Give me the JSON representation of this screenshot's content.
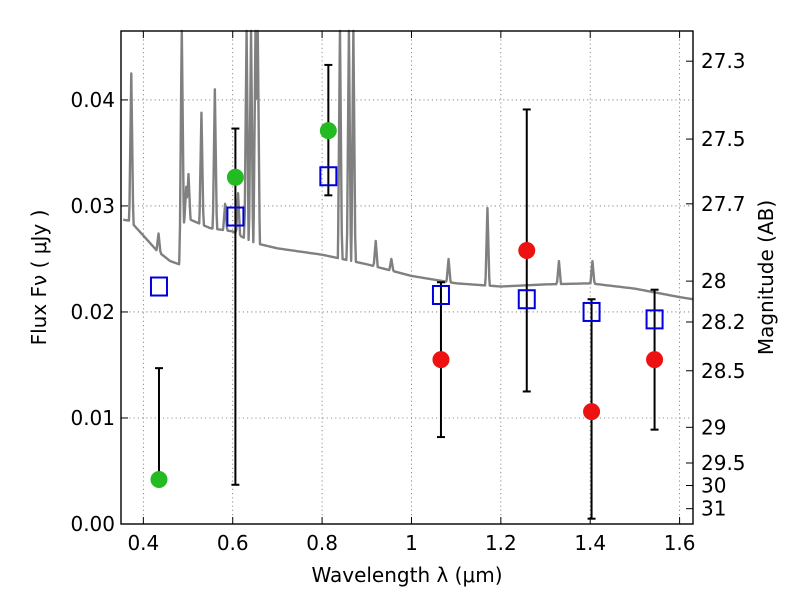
{
  "chart_data": {
    "type": "scatter",
    "title": "",
    "xlabel": "Wavelength  λ (μm)",
    "ylabel": "Flux  Fν  ( μJy )",
    "ylabel_right": "Magnitude (AB)",
    "xlim": [
      0.35,
      1.63
    ],
    "ylim": [
      0.0,
      0.0465
    ],
    "grid": true,
    "x_ticks": [
      0.4,
      0.6,
      0.8,
      1.0,
      1.2,
      1.4,
      1.6
    ],
    "x_tick_labels": [
      "0.4",
      "0.6",
      "0.8",
      "1",
      "1.2",
      "1.4",
      "1.6"
    ],
    "y_ticks": [
      0.0,
      0.01,
      0.02,
      0.03,
      0.04
    ],
    "y_tick_labels": [
      "0.00",
      "0.01",
      "0.02",
      "0.03",
      "0.04"
    ],
    "right_axis_tick_labels": [
      "27.3",
      "27.5",
      "27.7",
      "28",
      "28.2",
      "28.5",
      "29",
      "29.5",
      "30",
      "31"
    ],
    "series": [
      {
        "name": "",
        "kind": "observed-detections",
        "color": "#22bb22",
        "marker": "circle",
        "points": [
          {
            "x": 0.435,
            "y": 0.0042,
            "err_low": 0.0042,
            "err_high": 0.0147
          },
          {
            "x": 0.606,
            "y": 0.0327,
            "err_low": 0.0037,
            "err_high": 0.0373
          },
          {
            "x": 0.814,
            "y": 0.0371,
            "err_low": 0.031,
            "err_high": 0.0433
          }
        ]
      },
      {
        "name": "",
        "kind": "observed-low-snr",
        "color": "#ee1111",
        "marker": "circle",
        "points": [
          {
            "x": 1.066,
            "y": 0.0155,
            "err_low": 0.0082,
            "err_high": 0.0228
          },
          {
            "x": 1.258,
            "y": 0.0258,
            "err_low": 0.0125,
            "err_high": 0.0391
          },
          {
            "x": 1.403,
            "y": 0.0106,
            "err_low": 0.0005,
            "err_high": 0.0212
          },
          {
            "x": 1.544,
            "y": 0.0155,
            "err_low": 0.0089,
            "err_high": 0.0221
          }
        ]
      },
      {
        "name": "",
        "kind": "model-photometry",
        "color": "#0000dd",
        "marker": "open-square",
        "points": [
          {
            "x": 0.435,
            "y": 0.0224
          },
          {
            "x": 0.606,
            "y": 0.029
          },
          {
            "x": 0.814,
            "y": 0.0328
          },
          {
            "x": 1.066,
            "y": 0.0216
          },
          {
            "x": 1.258,
            "y": 0.0212
          },
          {
            "x": 1.403,
            "y": 0.02
          },
          {
            "x": 1.544,
            "y": 0.0193
          }
        ]
      },
      {
        "name": "",
        "kind": "model-spectrum",
        "color": "#808080",
        "continuum": [
          [
            0.355,
            0.0287
          ],
          [
            0.37,
            0.0286
          ],
          [
            0.4,
            0.0272
          ],
          [
            0.43,
            0.0258
          ],
          [
            0.46,
            0.0248
          ],
          [
            0.48,
            0.0245
          ],
          [
            0.485,
            0.0282
          ],
          [
            0.5,
            0.0288
          ],
          [
            0.55,
            0.0279
          ],
          [
            0.6,
            0.0276
          ],
          [
            0.62,
            0.0271
          ],
          [
            0.65,
            0.0265
          ],
          [
            0.7,
            0.026
          ],
          [
            0.8,
            0.0254
          ],
          [
            0.9,
            0.0245
          ],
          [
            1.0,
            0.0234
          ],
          [
            1.1,
            0.0227
          ],
          [
            1.2,
            0.0224
          ],
          [
            1.3,
            0.0226
          ],
          [
            1.4,
            0.0227
          ],
          [
            1.5,
            0.0222
          ],
          [
            1.6,
            0.0214
          ],
          [
            1.63,
            0.0212
          ]
        ],
        "emission_lines": [
          [
            0.373,
            0.0425
          ],
          [
            0.434,
            0.0274
          ],
          [
            0.486,
            0.047
          ],
          [
            0.496,
            0.0318
          ],
          [
            0.501,
            0.033
          ],
          [
            0.53,
            0.0388
          ],
          [
            0.56,
            0.041
          ],
          [
            0.583,
            0.0302
          ],
          [
            0.612,
            0.0312
          ],
          [
            0.631,
            0.047
          ],
          [
            0.641,
            0.047
          ],
          [
            0.651,
            0.047
          ],
          [
            0.656,
            0.047
          ],
          [
            0.672,
            0.026
          ],
          [
            0.84,
            0.047
          ],
          [
            0.86,
            0.047
          ],
          [
            0.87,
            0.047
          ],
          [
            0.92,
            0.0267
          ],
          [
            0.955,
            0.025
          ],
          [
            1.083,
            0.025
          ],
          [
            1.17,
            0.0298
          ],
          [
            1.33,
            0.0248
          ],
          [
            1.405,
            0.0248
          ]
        ]
      }
    ]
  }
}
